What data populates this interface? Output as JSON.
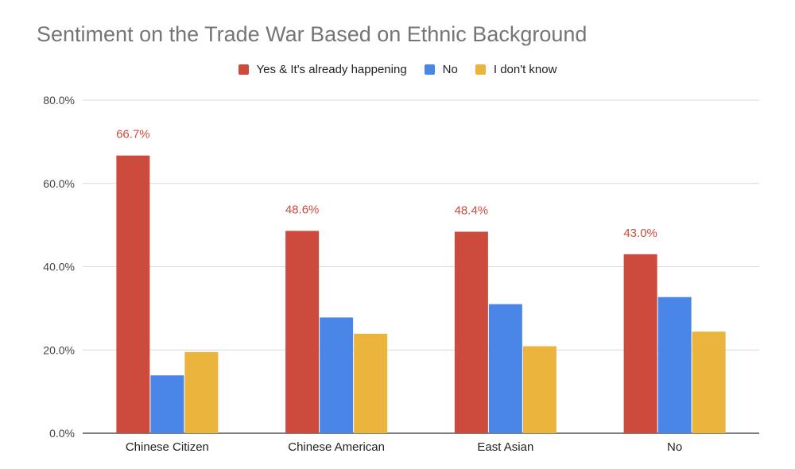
{
  "chart_data": {
    "type": "bar",
    "title": "Sentiment on the Trade War Based on Ethnic Background",
    "xlabel": "",
    "ylabel": "",
    "categories": [
      "Chinese Citizen",
      "Chinese American",
      "East Asian",
      "No"
    ],
    "series": [
      {
        "name": "Yes & It's already happening",
        "color": "#cc4b3c",
        "values": [
          66.7,
          48.6,
          48.4,
          43.0
        ],
        "labels": [
          "66.7%",
          "48.6%",
          "48.4%",
          "43.0%"
        ]
      },
      {
        "name": "No",
        "color": "#4a86e8",
        "values": [
          13.9,
          27.8,
          31.0,
          32.7
        ]
      },
      {
        "name": "I don't know",
        "color": "#ebb43c",
        "values": [
          19.5,
          23.9,
          20.9,
          24.4
        ]
      }
    ],
    "ylim": [
      0,
      80
    ],
    "yticks": [
      "0.0%",
      "20.0%",
      "40.0%",
      "60.0%",
      "80.0%"
    ],
    "ytick_values": [
      0,
      20,
      40,
      60,
      80
    ],
    "grid": true,
    "legend_position": "top",
    "data_label_color": "#cc4b3c"
  }
}
